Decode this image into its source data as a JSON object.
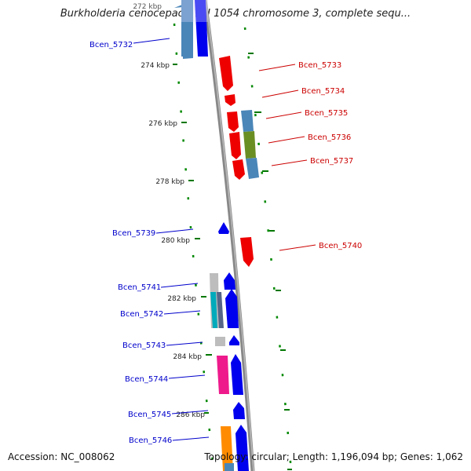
{
  "title": "Burkholderia cenocepacia AU 1054 chromosome 3, complete sequ...",
  "accession": "Accession: NC_008062",
  "topology": "Topology: circular; Length: 1,196,094 bp; Genes: 1,062",
  "colors": {
    "forward_label": "#cc0000",
    "reverse_label": "#0000cc",
    "backbone": "#888888",
    "tick": "#007700"
  },
  "ticks": [
    "272 kbp",
    "274 kbp",
    "276 kbp",
    "278 kbp",
    "280 kbp",
    "282 kbp",
    "284 kbp",
    "286 kbp"
  ],
  "genes": [
    {
      "label": "Bcen_5732",
      "strand": "reverse"
    },
    {
      "label": "Bcen_5733",
      "strand": "forward"
    },
    {
      "label": "Bcen_5734",
      "strand": "forward"
    },
    {
      "label": "Bcen_5735",
      "strand": "forward"
    },
    {
      "label": "Bcen_5736",
      "strand": "forward"
    },
    {
      "label": "Bcen_5737",
      "strand": "forward"
    },
    {
      "label": "Bcen_5739",
      "strand": "reverse"
    },
    {
      "label": "Bcen_5740",
      "strand": "forward"
    },
    {
      "label": "Bcen_5741",
      "strand": "reverse"
    },
    {
      "label": "Bcen_5742",
      "strand": "reverse"
    },
    {
      "label": "Bcen_5743",
      "strand": "reverse"
    },
    {
      "label": "Bcen_5744",
      "strand": "reverse"
    },
    {
      "label": "Bcen_5745",
      "strand": "reverse"
    },
    {
      "label": "Bcen_5746",
      "strand": "reverse"
    }
  ]
}
